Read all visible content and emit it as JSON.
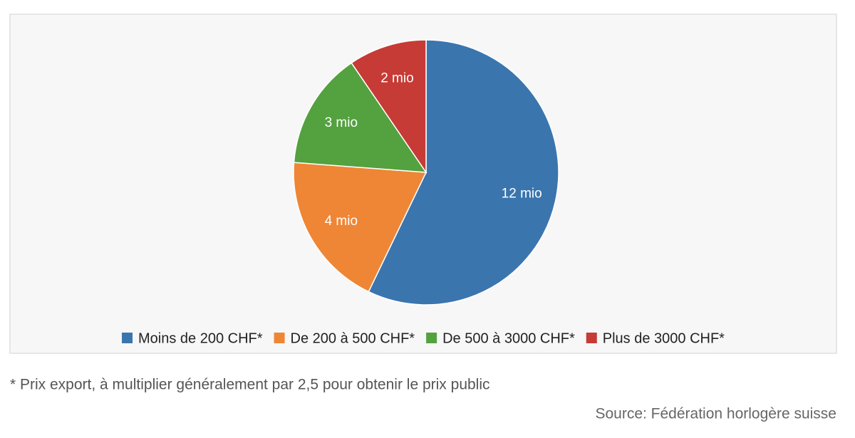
{
  "chart_data": {
    "type": "pie",
    "categories": [
      "Moins de 200 CHF*",
      "De 200 à 500 CHF*",
      "De 500 à 3000 CHF*",
      "Plus de 3000 CHF*"
    ],
    "values": [
      12,
      4,
      3,
      2
    ],
    "value_labels": [
      "12 mio",
      "4 mio",
      "3 mio",
      "2 mio"
    ],
    "colors": [
      "#3b75ae",
      "#ee8635",
      "#53a13f",
      "#c63b35"
    ],
    "legend": "bottom",
    "note": "* Prix export, à multiplier généralement par 2,5 pour obtenir le prix public",
    "source": "Source: Fédération horlogère suisse"
  }
}
